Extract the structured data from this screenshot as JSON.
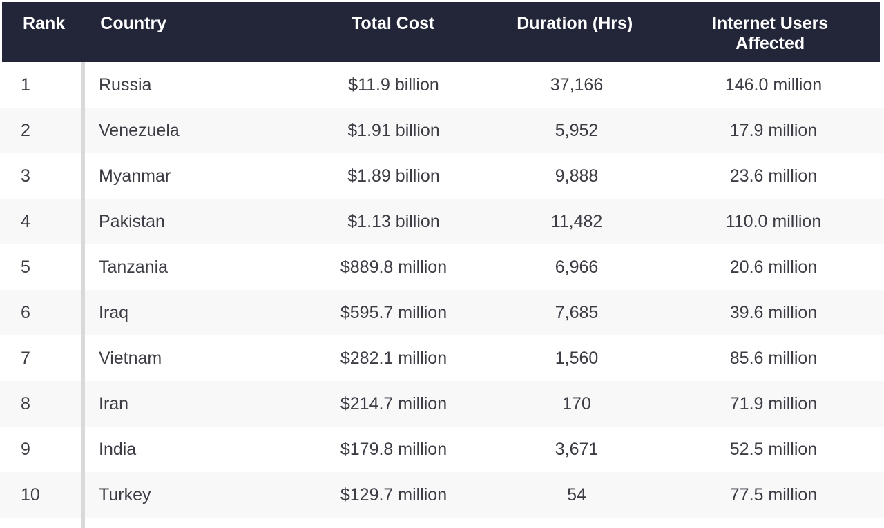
{
  "chart_data": {
    "type": "table",
    "columns": [
      "Rank",
      "Country",
      "Total Cost",
      "Duration (Hrs)",
      "Internet Users Affected"
    ],
    "rows": [
      [
        "1",
        "Russia",
        "$11.9 billion",
        "37,166",
        "146.0 million"
      ],
      [
        "2",
        "Venezuela",
        "$1.91 billion",
        "5,952",
        "17.9 million"
      ],
      [
        "3",
        "Myanmar",
        "$1.89 billion",
        "9,888",
        "23.6 million"
      ],
      [
        "4",
        "Pakistan",
        "$1.13 billion",
        "11,482",
        "110.0 million"
      ],
      [
        "5",
        "Tanzania",
        "$889.8 million",
        "6,966",
        "20.6 million"
      ],
      [
        "6",
        "Iraq",
        "$595.7 million",
        "7,685",
        "39.6 million"
      ],
      [
        "7",
        "Vietnam",
        "$282.1 million",
        "1,560",
        "85.6 million"
      ],
      [
        "8",
        "Iran",
        "$214.7 million",
        "170",
        "71.9 million"
      ],
      [
        "9",
        "India",
        "$179.8 million",
        "3,671",
        "52.5 million"
      ],
      [
        "10",
        "Turkey",
        "$129.7 million",
        "54",
        "77.5 million"
      ]
    ],
    "layout": {
      "zebra_striping": true,
      "rank_column_divider": true
    }
  },
  "colors": {
    "header_bg": "#232639",
    "header_text": "#ffffff",
    "body_text": "#3b3c44",
    "stripe": "#f8f8f9",
    "divider": "#d9d9db"
  }
}
